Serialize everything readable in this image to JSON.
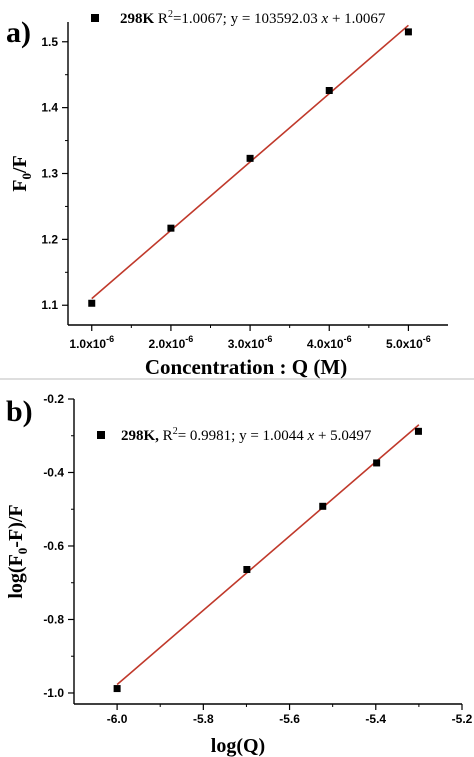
{
  "chart_data": [
    {
      "type": "scatter",
      "panel_label": "a)",
      "xlabel": "Concentration : Q (M)",
      "ylabel_main": "F",
      "ylabel_sub": "0",
      "ylabel_tail": "/F",
      "xlim": [
        7e-07,
        5.5e-06
      ],
      "ylim": [
        1.07,
        1.53
      ],
      "x_ticks": [
        1e-06,
        2e-06,
        3e-06,
        4e-06,
        5e-06
      ],
      "x_tick_labels": [
        {
          "mant": "1.0x10",
          "exp": "-6"
        },
        {
          "mant": "2.0x10",
          "exp": "-6"
        },
        {
          "mant": "3.0x10",
          "exp": "-6"
        },
        {
          "mant": "4.0x10",
          "exp": "-6"
        },
        {
          "mant": "5.0x10",
          "exp": "-6"
        }
      ],
      "y_ticks": [
        1.1,
        1.2,
        1.3,
        1.4,
        1.5
      ],
      "y_tick_labels": [
        "1.1",
        "1.2",
        "1.3",
        "1.4",
        "1.5"
      ],
      "series": [
        {
          "name": "298K",
          "x": [
            1e-06,
            2e-06,
            3e-06,
            4e-06,
            5e-06
          ],
          "y": [
            1.103,
            1.217,
            1.323,
            1.426,
            1.515
          ],
          "marker": "square",
          "color": "#000000"
        }
      ],
      "fit_line": {
        "x": [
          1e-06,
          5e-06
        ],
        "y": [
          1.11,
          1.525
        ],
        "color": "#c0392b"
      },
      "legend": {
        "position": "top",
        "series_name": "298K",
        "r_label": "R",
        "r_exp": "2",
        "r_value": "=1.0067;",
        "eq_prefix": "y = 103592.03",
        "eq_var": "x",
        "eq_suffix": " + 1.0067"
      }
    },
    {
      "type": "scatter",
      "panel_label": "b)",
      "xlabel": "log(Q)",
      "ylabel_main": "log(F",
      "ylabel_sub": "0",
      "ylabel_tail": "-F)/F",
      "xlim": [
        -6.1,
        -5.2
      ],
      "ylim": [
        -1.03,
        -0.2
      ],
      "x_ticks": [
        -6.0,
        -5.8,
        -5.6,
        -5.4,
        -5.2
      ],
      "x_tick_labels": [
        "-6.0",
        "-5.8",
        "-5.6",
        "-5.4",
        "-5.2"
      ],
      "y_ticks": [
        -1.0,
        -0.8,
        -0.6,
        -0.4,
        -0.2
      ],
      "y_tick_labels": [
        "-1.0",
        "-0.8",
        "-0.6",
        "-0.4",
        "-0.2"
      ],
      "series": [
        {
          "name": "298K",
          "x": [
            -6.0,
            -5.699,
            -5.523,
            -5.398,
            -5.301
          ],
          "y": [
            -0.988,
            -0.664,
            -0.492,
            -0.374,
            -0.288
          ],
          "marker": "square",
          "color": "#000000"
        }
      ],
      "fit_line": {
        "x": [
          -6.0,
          -5.3
        ],
        "y": [
          -0.977,
          -0.27
        ],
        "color": "#c0392b"
      },
      "legend": {
        "position": "top",
        "series_name": "298K,",
        "r_label": "R",
        "r_exp": "2",
        "r_value": "= 0.9981;",
        "eq_prefix": "y = 1.0044",
        "eq_var": "x",
        "eq_suffix": " + 5.0497"
      }
    }
  ]
}
